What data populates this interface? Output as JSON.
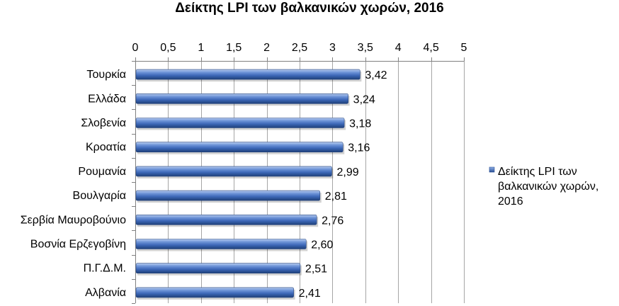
{
  "chart_data": {
    "type": "bar",
    "orientation": "horizontal",
    "title": "Δείκτης LPI των βαλκανικών χωρών, 2016",
    "categories": [
      "Τουρκία",
      "Ελλάδα",
      "Σλοβενία",
      "Κροατία",
      "Ρουμανία",
      "Βουλγαρία",
      "Σερβία Μαυροβούνιο",
      "Βοσνία Ερζεγοβίνη",
      "Π.Γ.Δ.Μ.",
      "Αλβανία"
    ],
    "series": [
      {
        "name": "Δείκτης LPI των βαλκανικών χωρών, 2016",
        "values": [
          3.42,
          3.24,
          3.18,
          3.16,
          2.99,
          2.81,
          2.76,
          2.6,
          2.51,
          2.41
        ],
        "labels": [
          "3,42",
          "3,24",
          "3,18",
          "3,16",
          "2,99",
          "2,81",
          "2,76",
          "2,60",
          "2,51",
          "2,41"
        ],
        "color": "#4472c4"
      }
    ],
    "xlim": [
      0,
      5
    ],
    "ticks": [
      {
        "value": 0,
        "label": "0"
      },
      {
        "value": 0.5,
        "label": "0,5"
      },
      {
        "value": 1,
        "label": "1"
      },
      {
        "value": 1.5,
        "label": "1,5"
      },
      {
        "value": 2,
        "label": "2"
      },
      {
        "value": 2.5,
        "label": "2,5"
      },
      {
        "value": 3,
        "label": "3"
      },
      {
        "value": 3.5,
        "label": "3,5"
      },
      {
        "value": 4,
        "label": "4"
      },
      {
        "value": 4.5,
        "label": "4,5"
      },
      {
        "value": 5,
        "label": "5"
      }
    ],
    "axis_position": "top",
    "grid": true,
    "legend_position": "right",
    "legend_lines": [
      "Δείκτης LPI των",
      "βαλκανικών χωρών,",
      "2016"
    ]
  }
}
